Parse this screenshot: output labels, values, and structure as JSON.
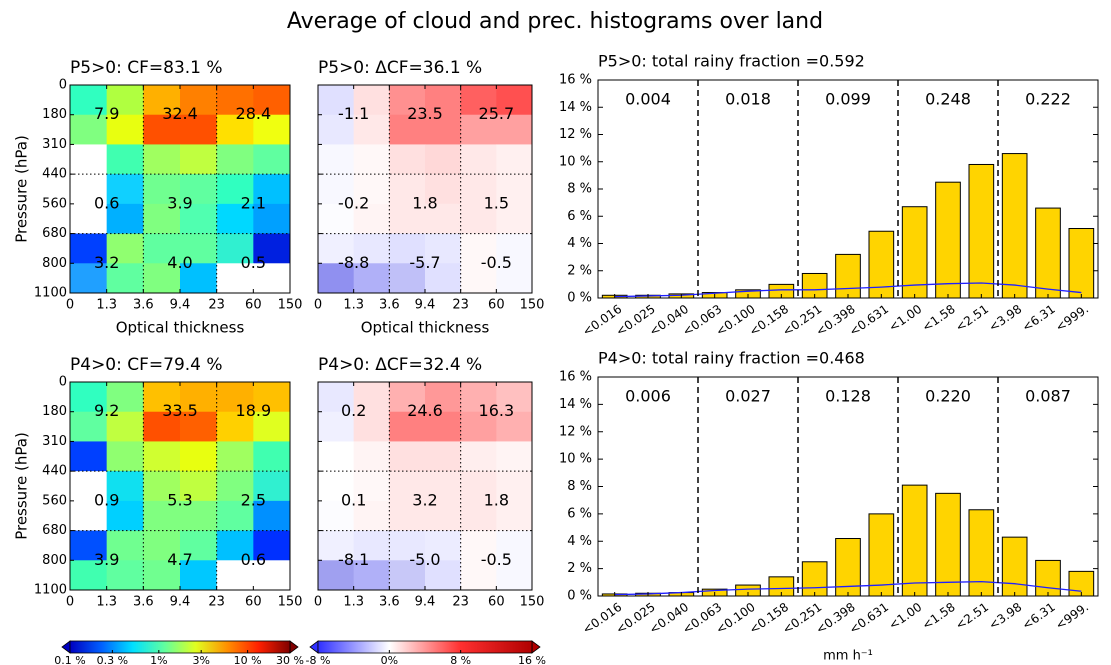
{
  "title": "Average of cloud and prec. histograms over land",
  "chart_data": [
    {
      "type": "heatmap",
      "title": "P5>0: CF=83.1 %",
      "ylabel": "Pressure (hPa)",
      "xlabel": "Optical thickness",
      "x_boundaries": [
        "0",
        "1.3",
        "3.6",
        "9.4",
        "23",
        "60",
        "150"
      ],
      "y_boundaries": [
        "0",
        "180",
        "310",
        "440",
        "560",
        "680",
        "800",
        "1100"
      ],
      "colors": [
        [
          "#30ffc0",
          "#b0ff40",
          "#ffb000",
          "#ff8000",
          "#ff7000",
          "#ff6000"
        ],
        [
          "#80ff80",
          "#e8ff10",
          "#ff5000",
          "#ff5000",
          "#ffe000",
          "#f0ff10"
        ],
        [
          "#ffffff",
          "#40ffb0",
          "#a0ff60",
          "#c0ff40",
          "#80ff80",
          "#60ffa0"
        ],
        [
          "#ffffff",
          "#10d0ff",
          "#70ff90",
          "#60ffa0",
          "#30ffc0",
          "#00c0ff"
        ],
        [
          "#ffffff",
          "#00b0ff",
          "#80ff80",
          "#50ffb0",
          "#00d8ff",
          "#00a0ff"
        ],
        [
          "#0040ff",
          "#90ff70",
          "#60ffa0",
          "#60ffa0",
          "#30f0d0",
          "#0020e0"
        ],
        [
          "#20a0ff",
          "#60ffa0",
          "#80ff80",
          "#00c0ff",
          "#ffffff",
          "#ffffff"
        ]
      ],
      "values": [
        [
          7.9,
          32.4,
          28.4
        ],
        [
          0.6,
          3.9,
          2.1
        ],
        [
          3.2,
          4.0,
          0.5
        ]
      ],
      "value_labels": [
        [
          "7.9",
          "32.4",
          "28.4"
        ],
        [
          "0.6",
          "3.9",
          "2.1"
        ],
        [
          "3.2",
          "4.0",
          "0.5"
        ]
      ]
    },
    {
      "type": "heatmap",
      "title": "P5>0: ΔCF=36.1 %",
      "xlabel": "Optical thickness",
      "x_boundaries": [
        "0",
        "1.3",
        "3.6",
        "9.4",
        "23",
        "60",
        "150"
      ],
      "colors": [
        [
          "#e0e0ff",
          "#ffe0e0",
          "#ff9090",
          "#ff8080",
          "#ff6060",
          "#ff5050"
        ],
        [
          "#e8e8ff",
          "#ffe8e8",
          "#ff8080",
          "#ff8080",
          "#ffa0a0",
          "#ffa0a0"
        ],
        [
          "#f8f8ff",
          "#fff8f8",
          "#ffe0e0",
          "#ffd8d8",
          "#ffe8e8",
          "#fff0f0"
        ],
        [
          "#f8f8ff",
          "#fff8f8",
          "#ffe8e8",
          "#ffe0e0",
          "#ffe8e8",
          "#fff0f0"
        ],
        [
          "#fcfcff",
          "#fff4f4",
          "#ffe8e8",
          "#ffe8e8",
          "#ffe8e8",
          "#fff0f0"
        ],
        [
          "#f0f0ff",
          "#e8e8ff",
          "#e0e0ff",
          "#e8e8ff",
          "#fff8f8",
          "#f8f8ff"
        ],
        [
          "#9090f0",
          "#b0b0f8",
          "#c0c0f8",
          "#e0e0ff",
          "#fff8f8",
          "#f8f8ff"
        ]
      ],
      "values": [
        [
          -1.1,
          23.5,
          25.7
        ],
        [
          -0.2,
          1.8,
          1.5
        ],
        [
          -8.8,
          -5.7,
          -0.5
        ]
      ]
    },
    {
      "type": "heatmap",
      "title": "P4>0: CF=79.4 %",
      "ylabel": "Pressure (hPa)",
      "x_boundaries": [
        "0",
        "1.3",
        "3.6",
        "9.4",
        "23",
        "60",
        "150"
      ],
      "y_boundaries": [
        "0",
        "180",
        "310",
        "440",
        "560",
        "680",
        "800",
        "1100"
      ],
      "colors": [
        [
          "#30ffc0",
          "#80ff80",
          "#ffc000",
          "#ffb000",
          "#ffb000",
          "#ffc000"
        ],
        [
          "#60ffa0",
          "#c0ff40",
          "#ff5000",
          "#ff6000",
          "#ffd000",
          "#e0ff20"
        ],
        [
          "#0040ff",
          "#90ff70",
          "#d0ff30",
          "#e8ff10",
          "#a0ff60",
          "#40ffb0"
        ],
        [
          "#ffffff",
          "#10e0f0",
          "#a0ff60",
          "#c0ff40",
          "#80ff80",
          "#30f0d0"
        ],
        [
          "#ffffff",
          "#00d0ff",
          "#80ff80",
          "#80ff80",
          "#60ffa0",
          "#0090ff"
        ],
        [
          "#0050ff",
          "#70ff90",
          "#80ff80",
          "#60ffa0",
          "#00c0ff",
          "#0030ff"
        ],
        [
          "#40ffb0",
          "#60ffa0",
          "#70ff90",
          "#00c8ff",
          "#ffffff",
          "#ffffff"
        ]
      ],
      "values": [
        [
          9.2,
          33.5,
          18.9
        ],
        [
          0.9,
          5.3,
          2.5
        ],
        [
          3.9,
          4.7,
          0.6
        ]
      ],
      "colorbar": {
        "lim": [
          0.1,
          30
        ],
        "log": true,
        "colors": [
          "#0000c0",
          "#0060ff",
          "#00e0ff",
          "#60ffa0",
          "#e0ff20",
          "#ff9000",
          "#ff2000",
          "#800000"
        ],
        "ticks": [
          {
            "value": 0.1,
            "label": "0.1 %"
          },
          {
            "value": 0.3,
            "label": "0.3 %"
          },
          {
            "value": 1,
            "label": "1%"
          },
          {
            "value": 3,
            "label": "3%"
          },
          {
            "value": 10,
            "label": "10 %"
          },
          {
            "value": 30,
            "label": "30 %"
          }
        ]
      }
    },
    {
      "type": "heatmap",
      "title": "P4>0: ΔCF=32.4 %",
      "x_boundaries": [
        "0",
        "1.3",
        "3.6",
        "9.4",
        "23",
        "60",
        "150"
      ],
      "colors": [
        [
          "#e8e8ff",
          "#ffe0e0",
          "#ffb0b0",
          "#ff9898",
          "#ffb0b0",
          "#ffc0c0"
        ],
        [
          "#f0f0ff",
          "#ffe0e0",
          "#ff8080",
          "#ff8080",
          "#ffa0a0",
          "#ffb0b0"
        ],
        [
          "#ffffff",
          "#fff4f4",
          "#ffe0e0",
          "#ffe0e0",
          "#ffeeee",
          "#fff4f4"
        ],
        [
          "#ffffff",
          "#fff8f8",
          "#ffe8e8",
          "#ffe8e8",
          "#ffe8e8",
          "#fff0f0"
        ],
        [
          "#fcfcff",
          "#fff4f4",
          "#ffe8e8",
          "#ffe8e8",
          "#ffe8e8",
          "#fff0f0"
        ],
        [
          "#f0f0ff",
          "#e8e8ff",
          "#e8e8ff",
          "#ececff",
          "#fff8f8",
          "#f8f8ff"
        ],
        [
          "#a0a0f0",
          "#b0b0f8",
          "#c8c8f8",
          "#e0e0ff",
          "#fff8f8",
          "#f8f8ff"
        ]
      ],
      "values": [
        [
          0.2,
          24.6,
          16.3
        ],
        [
          0.1,
          3.2,
          1.8
        ],
        [
          -8.1,
          -5.0,
          -0.5
        ]
      ],
      "value_labels": [
        [
          "0.2",
          "24.6",
          "16.3"
        ],
        [
          "0.1",
          "3.2",
          "1.8"
        ],
        [
          "-8.1",
          "-5.0",
          "-0.5"
        ]
      ],
      "colorbar": {
        "lim": [
          -8,
          16
        ],
        "log": false,
        "colors": [
          "#3030ff",
          "#ffffff",
          "#ff3030",
          "#b00000"
        ],
        "ticks": [
          {
            "value": -8,
            "label": "-8 %"
          },
          {
            "value": 0,
            "label": "0%"
          },
          {
            "value": 8,
            "label": "8 %"
          },
          {
            "value": 16,
            "label": "16 %"
          }
        ]
      }
    },
    {
      "type": "bar",
      "title": "P5>0:  total rainy fraction =0.592",
      "categories": [
        "<0.016",
        "<0.025",
        "<0.040",
        "<0.063",
        "<0.100",
        "<0.158",
        "<0.251",
        "<0.398",
        "<0.631",
        "<1.00",
        "<1.58",
        "<2.51",
        "<3.98",
        "<6.31",
        "<999."
      ],
      "series": [
        {
          "type": "bar",
          "color": "#ffd400",
          "values": [
            0.2,
            0.2,
            0.3,
            0.4,
            0.6,
            1.0,
            1.8,
            3.2,
            4.9,
            6.7,
            8.5,
            9.8,
            10.6,
            6.6,
            5.1
          ]
        },
        {
          "type": "line",
          "color": "#2020ff",
          "values": [
            0.1,
            0.15,
            0.2,
            0.35,
            0.5,
            0.6,
            0.6,
            0.7,
            0.8,
            0.95,
            1.05,
            1.1,
            0.95,
            0.65,
            0.4
          ]
        }
      ],
      "group_values": [
        0.004,
        0.018,
        0.099,
        0.248,
        0.222
      ],
      "ylim": [
        0,
        16
      ],
      "yticks": [
        {
          "value": 0,
          "label": "0 %"
        },
        {
          "value": 2,
          "label": "2 %"
        },
        {
          "value": 4,
          "label": "4 %"
        },
        {
          "value": 6,
          "label": "6 %"
        },
        {
          "value": 8,
          "label": "8 %"
        },
        {
          "value": 10,
          "label": "10 %"
        },
        {
          "value": 12,
          "label": "12 %"
        },
        {
          "value": 14,
          "label": "14 %"
        },
        {
          "value": 16,
          "label": "16 %"
        }
      ]
    },
    {
      "type": "bar",
      "title": "P4>0:  total rainy fraction =0.468",
      "xlabel": "mm h⁻¹",
      "categories": [
        "<0.016",
        "<0.025",
        "<0.040",
        "<0.063",
        "<0.100",
        "<0.158",
        "<0.251",
        "<0.398",
        "<0.631",
        "<1.00",
        "<1.58",
        "<2.51",
        "<3.98",
        "<6.31",
        "<999."
      ],
      "series": [
        {
          "type": "bar",
          "color": "#ffd400",
          "values": [
            0.15,
            0.2,
            0.25,
            0.5,
            0.8,
            1.4,
            2.5,
            4.2,
            6.0,
            8.1,
            7.5,
            6.3,
            4.3,
            2.6,
            1.8
          ]
        },
        {
          "type": "line",
          "color": "#2020ff",
          "values": [
            0.1,
            0.15,
            0.25,
            0.4,
            0.5,
            0.55,
            0.6,
            0.7,
            0.8,
            0.95,
            1.0,
            1.05,
            0.9,
            0.6,
            0.35
          ]
        }
      ],
      "group_values": [
        0.006,
        0.027,
        0.128,
        0.22,
        0.087
      ],
      "group_value_labels": [
        "0.006",
        "0.027",
        "0.128",
        "0.220",
        "0.087"
      ],
      "ylim": [
        0,
        16
      ],
      "yticks": [
        {
          "value": 0,
          "label": "0 %"
        },
        {
          "value": 2,
          "label": "2 %"
        },
        {
          "value": 4,
          "label": "4 %"
        },
        {
          "value": 6,
          "label": "6 %"
        },
        {
          "value": 8,
          "label": "8 %"
        },
        {
          "value": 10,
          "label": "10 %"
        },
        {
          "value": 12,
          "label": "12 %"
        },
        {
          "value": 14,
          "label": "14 %"
        },
        {
          "value": 16,
          "label": "16 %"
        }
      ]
    }
  ]
}
